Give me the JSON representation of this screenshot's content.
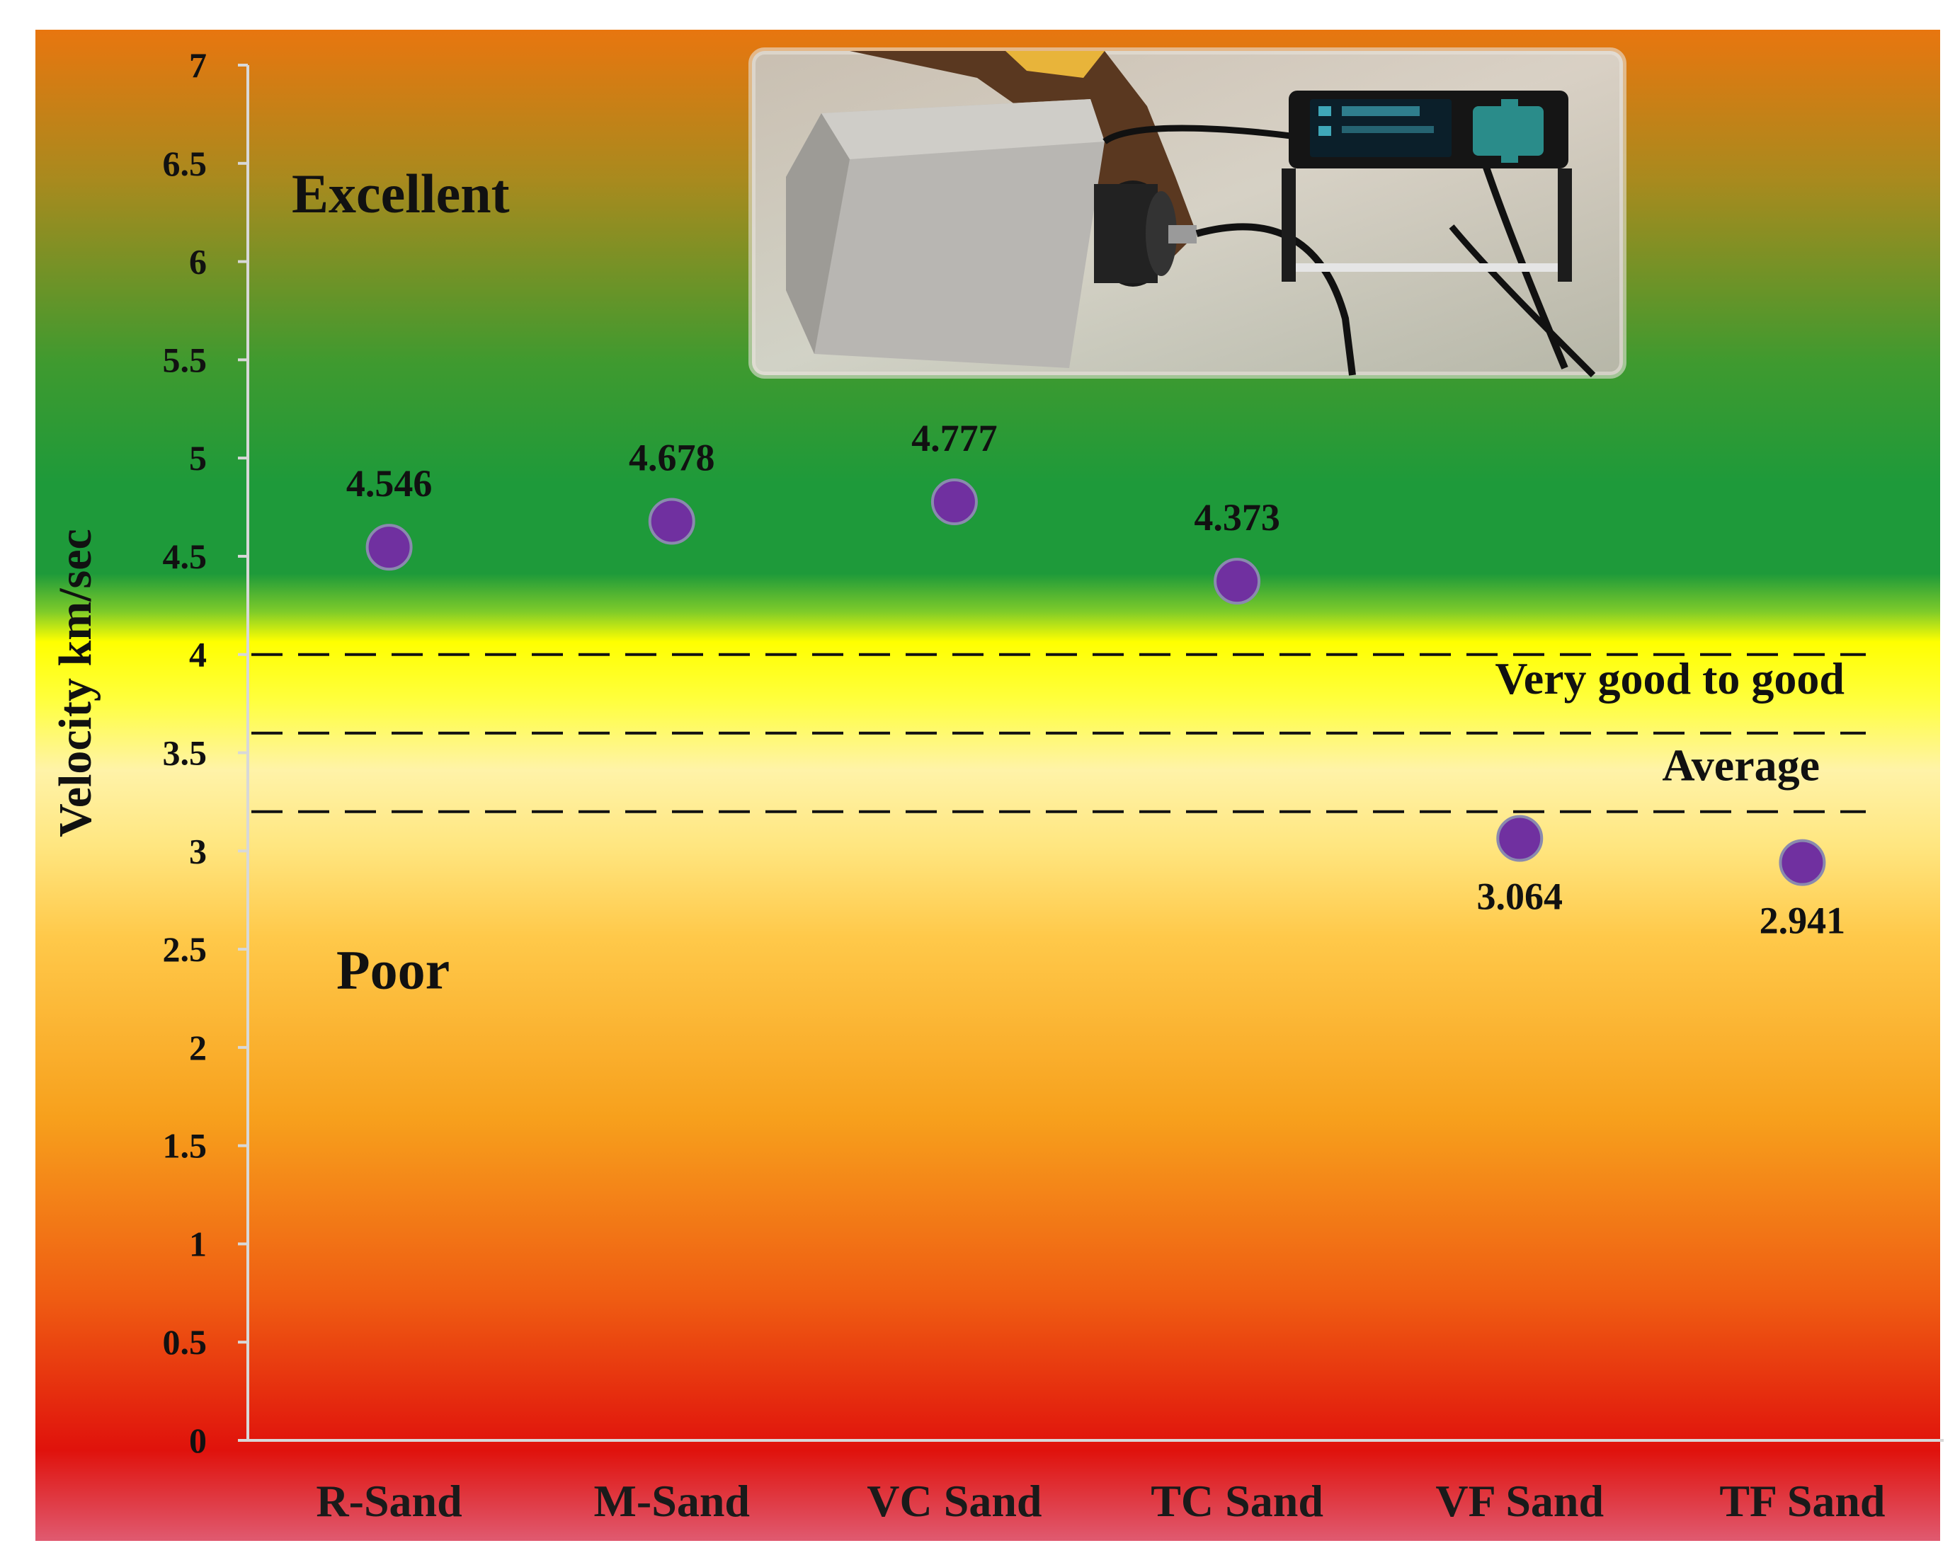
{
  "chart_data": {
    "type": "scatter",
    "ylabel": "Velocity km/sec",
    "ylim": [
      0,
      7
    ],
    "yticks": [
      "0",
      "0.5",
      "1",
      "1.5",
      "2",
      "2.5",
      "3",
      "3.5",
      "4",
      "4.5",
      "5",
      "5.5",
      "6",
      "6.5",
      "7"
    ],
    "categories": [
      "R-Sand",
      "M-Sand",
      "VC Sand",
      "TC Sand",
      "VF Sand",
      "TF Sand"
    ],
    "values": [
      4.546,
      4.678,
      4.777,
      4.373,
      3.064,
      2.941
    ],
    "value_labels": [
      "4.546",
      "4.678",
      "4.777",
      "4.373",
      "3.064",
      "2.941"
    ],
    "marker_color": "#7030A0",
    "threshold_lines": [
      4.0,
      3.6,
      3.2
    ],
    "zones": [
      {
        "label": "Excellent",
        "y": 6.25
      },
      {
        "label": "Very good to good",
        "y": 3.8
      },
      {
        "label": "Average",
        "y": 3.36
      },
      {
        "label": "Poor",
        "y": 2.3
      }
    ],
    "background_colors": {
      "top": "#E8760F",
      "excellent": "#1F9A3A",
      "good": "#FFFF00",
      "average": "#FFE070",
      "poor": "#F7A21B",
      "bottom": "#E0100C"
    },
    "grid": false
  }
}
